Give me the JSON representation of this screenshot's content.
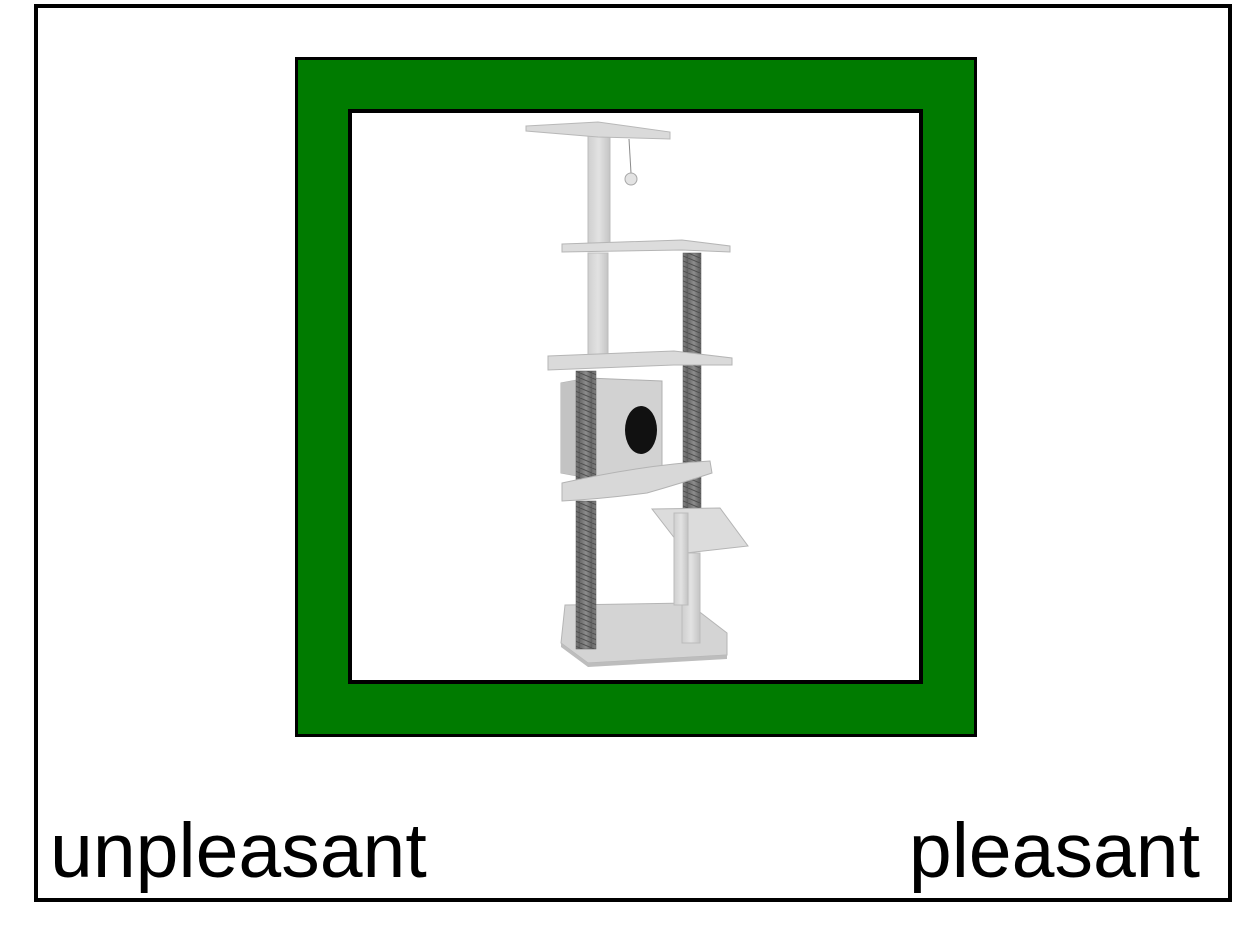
{
  "frame": {
    "highlight_color": "#007b00",
    "border_color": "#000000"
  },
  "stimulus": {
    "icon": "cat-tree-icon"
  },
  "scale": {
    "left_label": "unpleasant",
    "right_label": "pleasant"
  }
}
